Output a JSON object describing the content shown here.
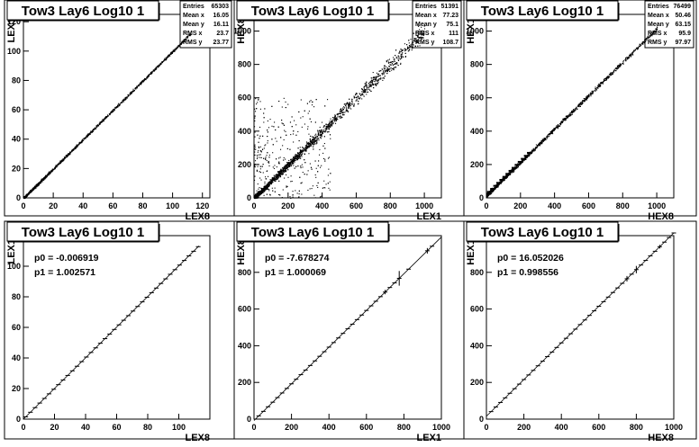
{
  "chart_data": [
    {
      "type": "scatter",
      "title": "Tow3 Lay6 Log10 1",
      "xlabel": "LEX8",
      "ylabel": "LEX1",
      "xlim": [
        0,
        125
      ],
      "ylim": [
        0,
        125
      ],
      "xticks": [
        "0",
        "20",
        "40",
        "60",
        "80",
        "100",
        "120"
      ],
      "yticks": [
        "0",
        "20",
        "40",
        "60",
        "80",
        "100",
        "120"
      ],
      "stats": [
        {
          "label": "Entries",
          "value": "65303"
        },
        {
          "label": "Mean x",
          "value": "16.05"
        },
        {
          "label": "Mean y",
          "value": "16.11"
        },
        {
          "label": "RMS x",
          "value": "23.7"
        },
        {
          "label": "RMS y",
          "value": "23.77"
        }
      ],
      "relation": {
        "slope": 1.0,
        "intercept": 0.0,
        "x_range": [
          0,
          112
        ],
        "spread": 0.6
      }
    },
    {
      "type": "scatter",
      "title": "Tow3 Lay6 Log10 1",
      "xlabel": "LEX1",
      "ylabel": "HEX8",
      "xlim": [
        0,
        1100
      ],
      "ylim": [
        0,
        1100
      ],
      "xticks": [
        "0",
        "200",
        "400",
        "600",
        "800",
        "1000"
      ],
      "yticks": [
        "0",
        "200",
        "400",
        "600",
        "800",
        "1000"
      ],
      "stats": [
        {
          "label": "Entries",
          "value": "51391"
        },
        {
          "label": "Mean x",
          "value": "77.23"
        },
        {
          "label": "Mean y",
          "value": "75.1"
        },
        {
          "label": "RMS x",
          "value": "111"
        },
        {
          "label": "RMS y",
          "value": "108.7"
        }
      ],
      "relation": {
        "slope": 1.0,
        "intercept": 0.0,
        "x_range": [
          0,
          1000
        ],
        "spread": 25
      }
    },
    {
      "type": "scatter",
      "title": "Tow3 Lay6 Log10 1",
      "xlabel": "HEX8",
      "ylabel": "HEX1",
      "xlim": [
        0,
        1100
      ],
      "ylim": [
        0,
        1100
      ],
      "xticks": [
        "0",
        "200",
        "400",
        "600",
        "800",
        "1000"
      ],
      "yticks": [
        "0",
        "200",
        "400",
        "600",
        "800",
        "1000"
      ],
      "stats": [
        {
          "label": "Entries",
          "value": "76499"
        },
        {
          "label": "Mean x",
          "value": "50.46"
        },
        {
          "label": "Mean y",
          "value": "63.15"
        },
        {
          "label": "RMS x",
          "value": "95.9"
        },
        {
          "label": "RMS y",
          "value": "97.97"
        }
      ],
      "relation": {
        "slope": 1.0,
        "intercept": 16.0,
        "x_range": [
          0,
          1000
        ],
        "spread": 8
      }
    },
    {
      "type": "line",
      "title": "Tow3 Lay6 Log10 1",
      "xlabel": "LEX8",
      "ylabel": "LEX1",
      "xlim": [
        0,
        120
      ],
      "ylim": [
        0,
        120
      ],
      "xticks": [
        "0",
        "20",
        "40",
        "60",
        "80",
        "100"
      ],
      "yticks": [
        "0",
        "20",
        "40",
        "60",
        "80",
        "100",
        "120"
      ],
      "fit": {
        "p0": "p0 = -0.006919",
        "p1": "p1 = 1.002571",
        "intercept": -0.006919,
        "slope": 1.002571
      },
      "fit_range": [
        0,
        113
      ],
      "profile_x": [
        1.5,
        4.5,
        7.5,
        10.5,
        13.5,
        16.5,
        19.5,
        22.5,
        25.5,
        28.5,
        31.5,
        34.5,
        37.5,
        40.5,
        43.5,
        46.5,
        49.5,
        52.5,
        55.5,
        58.5,
        61.5,
        64.5,
        67.5,
        70.5,
        73.5,
        76.5,
        79.5,
        82.5,
        85.5,
        88.5,
        91.5,
        94.5,
        97.5,
        100.5,
        103.5,
        106.5,
        109.5,
        112.5
      ],
      "bin_halfwidth": 1.5,
      "errors": []
    },
    {
      "type": "line",
      "title": "Tow3 Lay6 Log10 1",
      "xlabel": "LEX1",
      "ylabel": "HEX8",
      "xlim": [
        0,
        1000
      ],
      "ylim": [
        0,
        1000
      ],
      "xticks": [
        "0",
        "200",
        "400",
        "600",
        "800",
        "1000"
      ],
      "yticks": [
        "0",
        "200",
        "400",
        "600",
        "800"
      ],
      "fit": {
        "p0": "p0 = -7.678274",
        "p1": "p1 = 1.000069",
        "intercept": -7.678274,
        "slope": 1.000069
      },
      "fit_range": [
        0,
        1000
      ],
      "profile_x": [
        25,
        50,
        75,
        100,
        125,
        150,
        175,
        200,
        225,
        250,
        275,
        300,
        325,
        350,
        375,
        400,
        425,
        450,
        475,
        500,
        525,
        550,
        575,
        600,
        625,
        650,
        675,
        700,
        725,
        750,
        775,
        825,
        925,
        950
      ],
      "bin_halfwidth": 12,
      "errors": [
        {
          "x": 775,
          "e": 40
        },
        {
          "x": 925,
          "e": 15
        },
        {
          "x": 700,
          "e": 12
        }
      ]
    },
    {
      "type": "line",
      "title": "Tow3 Lay6 Log10 1",
      "xlabel": "HEX8",
      "ylabel": "HEX1",
      "xlim": [
        0,
        1000
      ],
      "ylim": [
        0,
        1000
      ],
      "xticks": [
        "0",
        "200",
        "400",
        "600",
        "800",
        "1000"
      ],
      "yticks": [
        "0",
        "200",
        "400",
        "600",
        "800",
        "1000"
      ],
      "fit": {
        "p0": "p0 = 16.052026",
        "p1": "p1 = 0.998556",
        "intercept": 16.052026,
        "slope": 0.998556
      },
      "fit_range": [
        0,
        1000
      ],
      "profile_x": [
        25,
        50,
        75,
        100,
        125,
        150,
        175,
        200,
        225,
        250,
        275,
        300,
        325,
        350,
        375,
        400,
        425,
        450,
        475,
        500,
        525,
        550,
        575,
        600,
        625,
        650,
        675,
        700,
        725,
        750,
        775,
        800,
        825,
        850,
        875,
        900,
        925,
        950,
        975,
        1000
      ],
      "bin_halfwidth": 12,
      "errors": [
        {
          "x": 750,
          "e": 15
        },
        {
          "x": 800,
          "e": 20
        },
        {
          "x": 925,
          "e": 10
        }
      ]
    }
  ]
}
